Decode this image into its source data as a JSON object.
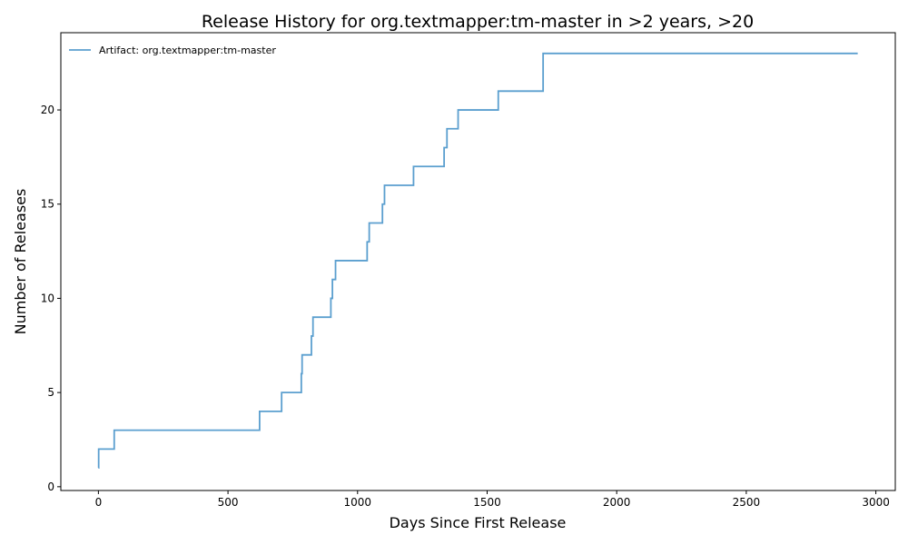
{
  "chart_data": {
    "type": "line",
    "step": "post",
    "title": "Release History for org.textmapper:tm-master in >2 years, >20",
    "xlabel": "Days Since First Release",
    "ylabel": "Number of Releases",
    "xlim": [
      -145,
      3075
    ],
    "ylim": [
      -0.2,
      24.1
    ],
    "xticks": [
      0,
      500,
      1000,
      1500,
      2000,
      2500,
      3000
    ],
    "xtick_labels": [
      "0",
      "500",
      "1000",
      "1500",
      "2000",
      "2500",
      "3000"
    ],
    "yticks": [
      0,
      5,
      10,
      15,
      20
    ],
    "ytick_labels": [
      "0",
      "5",
      "10",
      "15",
      "20"
    ],
    "grid": false,
    "legend_position": "top-left",
    "series": [
      {
        "name": "Artifact: org.textmapper:tm-master",
        "color": "#5b9fcf",
        "x": [
          0,
          1,
          61,
          622,
          707,
          783,
          786,
          822,
          828,
          897,
          903,
          915,
          1037,
          1045,
          1096,
          1104,
          1216,
          1334,
          1345,
          1388,
          1543,
          1716,
          2930
        ],
        "y": [
          1,
          2,
          3,
          4,
          5,
          6,
          7,
          8,
          9,
          10,
          11,
          12,
          13,
          14,
          15,
          16,
          17,
          18,
          19,
          20,
          21,
          23,
          23
        ]
      }
    ]
  }
}
